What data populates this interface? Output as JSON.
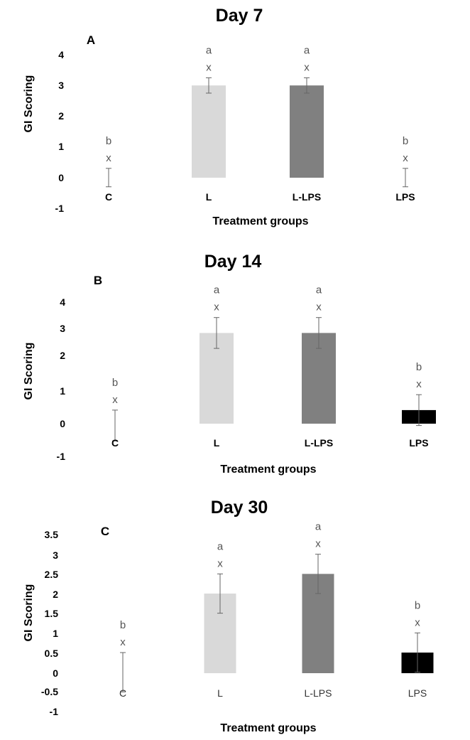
{
  "chart_data": [
    {
      "type": "bar",
      "title": "Day 7",
      "panel_label": "A",
      "xlabel": "Treatment groups",
      "ylabel": "GI Scoring",
      "ylim": [
        -1,
        4
      ],
      "yticks": [
        "4",
        "3",
        "2",
        "1",
        "0",
        "-1"
      ],
      "categories": [
        "C",
        "L",
        "L-LPS",
        "LPS"
      ],
      "values": [
        0,
        3,
        3,
        0
      ],
      "errors": [
        0.3,
        0.25,
        0.25,
        0.3
      ],
      "bar_colors": [
        "#ffffff",
        "#d9d9d9",
        "#808080",
        "#000000"
      ],
      "group_letters": [
        "b",
        "a",
        "a",
        "b"
      ],
      "time_letters": [
        "x",
        "x",
        "x",
        "x"
      ]
    },
    {
      "type": "bar",
      "title": "Day 14",
      "panel_label": "B",
      "xlabel": "Treatment groups",
      "ylabel": "GI Scoring",
      "ylim": [
        -1,
        4
      ],
      "yticks": [
        "4",
        "3",
        "2",
        "1",
        "0",
        "-1"
      ],
      "categories": [
        "C",
        "L",
        "L-LPS",
        "LPS"
      ],
      "values": [
        0,
        3,
        3,
        0.5
      ],
      "errors": [
        0.5,
        0.5,
        0.5,
        0.5
      ],
      "bar_colors": [
        "#ffffff",
        "#d9d9d9",
        "#808080",
        "#000000"
      ],
      "group_letters": [
        "b",
        "a",
        "a",
        "b"
      ],
      "time_letters": [
        "x",
        "x",
        "x",
        "x"
      ]
    },
    {
      "type": "bar",
      "title": "Day 30",
      "panel_label": "C",
      "xlabel": "Treatment groups",
      "ylabel": "GI Scoring",
      "ylim": [
        -1,
        3.5
      ],
      "yticks": [
        "3.5",
        "3",
        "2.5",
        "2",
        "1.5",
        "1",
        "0.5",
        "0",
        "-0.5",
        "-1"
      ],
      "categories": [
        "C",
        "L",
        "L-LPS",
        "LPS"
      ],
      "values": [
        0,
        2,
        2.5,
        0.5
      ],
      "errors": [
        0.5,
        0.5,
        0.5,
        0.5
      ],
      "bar_colors": [
        "#ffffff",
        "#d9d9d9",
        "#808080",
        "#000000"
      ],
      "group_letters": [
        "b",
        "a",
        "a",
        "b"
      ],
      "time_letters": [
        "x",
        "x",
        "x",
        "x"
      ]
    }
  ]
}
